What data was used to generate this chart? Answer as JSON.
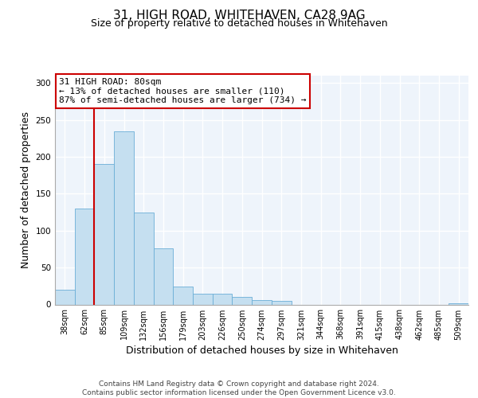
{
  "title": "31, HIGH ROAD, WHITEHAVEN, CA28 9AG",
  "subtitle": "Size of property relative to detached houses in Whitehaven",
  "xlabel": "Distribution of detached houses by size in Whitehaven",
  "ylabel": "Number of detached properties",
  "categories": [
    "38sqm",
    "62sqm",
    "85sqm",
    "109sqm",
    "132sqm",
    "156sqm",
    "179sqm",
    "203sqm",
    "226sqm",
    "250sqm",
    "274sqm",
    "297sqm",
    "321sqm",
    "344sqm",
    "368sqm",
    "391sqm",
    "415sqm",
    "438sqm",
    "462sqm",
    "485sqm",
    "509sqm"
  ],
  "values": [
    20,
    130,
    190,
    235,
    125,
    76,
    24,
    15,
    15,
    10,
    6,
    5,
    0,
    0,
    0,
    0,
    0,
    0,
    0,
    0,
    2
  ],
  "bar_color": "#c5dff0",
  "bar_edge_color": "#6aaed6",
  "vline_color": "#cc0000",
  "vline_x_index": 1.5,
  "annotation_line1": "31 HIGH ROAD: 80sqm",
  "annotation_line2": "← 13% of detached houses are smaller (110)",
  "annotation_line3": "87% of semi-detached houses are larger (734) →",
  "annotation_box_color": "white",
  "annotation_box_edge": "#cc0000",
  "ylim": [
    0,
    310
  ],
  "yticks": [
    0,
    50,
    100,
    150,
    200,
    250,
    300
  ],
  "plot_bg": "#eef4fb",
  "footer": "Contains HM Land Registry data © Crown copyright and database right 2024.\nContains public sector information licensed under the Open Government Licence v3.0.",
  "title_fontsize": 11,
  "subtitle_fontsize": 9,
  "tick_fontsize": 7,
  "ylabel_fontsize": 9,
  "xlabel_fontsize": 9,
  "annotation_fontsize": 8,
  "footer_fontsize": 6.5
}
